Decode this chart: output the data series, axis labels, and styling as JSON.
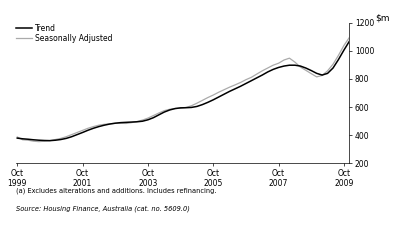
{
  "ylim": [
    200,
    1200
  ],
  "yticks": [
    200,
    400,
    600,
    800,
    1000,
    1200
  ],
  "xlim_start": 1999.708,
  "xlim_end": 2009.917,
  "xtick_positions": [
    1999.75,
    2001.75,
    2003.75,
    2005.75,
    2007.75,
    2009.75
  ],
  "xtick_labels": [
    "Oct\n1999",
    "Oct\n2001",
    "Oct\n2003",
    "Oct\n2005",
    "Oct\n2007",
    "Oct\n2009"
  ],
  "trend_color": "#000000",
  "seasonal_color": "#aaaaaa",
  "legend_labels": [
    "Trend",
    "Seasonally Adjusted"
  ],
  "footnote1": "(a) Excludes alterations and additions. Includes refinancing.",
  "footnote2": "Source: Housing Finance, Australia (cat. no. 5609.0)",
  "background_color": "#ffffff",
  "trend_data": [
    [
      1999.75,
      380
    ],
    [
      1999.917,
      375
    ],
    [
      2000.083,
      372
    ],
    [
      2000.25,
      368
    ],
    [
      2000.417,
      365
    ],
    [
      2000.583,
      363
    ],
    [
      2000.75,
      362
    ],
    [
      2000.917,
      365
    ],
    [
      2001.083,
      370
    ],
    [
      2001.25,
      378
    ],
    [
      2001.417,
      390
    ],
    [
      2001.583,
      405
    ],
    [
      2001.75,
      420
    ],
    [
      2001.917,
      436
    ],
    [
      2002.083,
      450
    ],
    [
      2002.25,
      462
    ],
    [
      2002.417,
      472
    ],
    [
      2002.583,
      480
    ],
    [
      2002.75,
      486
    ],
    [
      2002.917,
      490
    ],
    [
      2003.083,
      492
    ],
    [
      2003.25,
      494
    ],
    [
      2003.417,
      496
    ],
    [
      2003.583,
      500
    ],
    [
      2003.75,
      510
    ],
    [
      2003.917,
      525
    ],
    [
      2004.083,
      545
    ],
    [
      2004.25,
      565
    ],
    [
      2004.417,
      580
    ],
    [
      2004.583,
      590
    ],
    [
      2004.75,
      595
    ],
    [
      2004.917,
      596
    ],
    [
      2005.083,
      598
    ],
    [
      2005.25,
      605
    ],
    [
      2005.417,
      618
    ],
    [
      2005.583,
      634
    ],
    [
      2005.75,
      652
    ],
    [
      2005.917,
      672
    ],
    [
      2006.083,
      692
    ],
    [
      2006.25,
      712
    ],
    [
      2006.417,
      730
    ],
    [
      2006.583,
      748
    ],
    [
      2006.75,
      768
    ],
    [
      2006.917,
      788
    ],
    [
      2007.083,
      808
    ],
    [
      2007.25,
      828
    ],
    [
      2007.417,
      850
    ],
    [
      2007.583,
      868
    ],
    [
      2007.75,
      882
    ],
    [
      2007.917,
      892
    ],
    [
      2008.083,
      898
    ],
    [
      2008.25,
      898
    ],
    [
      2008.417,
      892
    ],
    [
      2008.583,
      878
    ],
    [
      2008.75,
      860
    ],
    [
      2008.917,
      840
    ],
    [
      2009.083,
      828
    ],
    [
      2009.25,
      840
    ],
    [
      2009.417,
      878
    ],
    [
      2009.583,
      938
    ],
    [
      2009.75,
      1005
    ],
    [
      2009.917,
      1068
    ]
  ],
  "seasonal_data": [
    [
      1999.75,
      388
    ],
    [
      1999.917,
      368
    ],
    [
      2000.083,
      365
    ],
    [
      2000.25,
      358
    ],
    [
      2000.417,
      355
    ],
    [
      2000.583,
      358
    ],
    [
      2000.75,
      362
    ],
    [
      2000.917,
      370
    ],
    [
      2001.083,
      378
    ],
    [
      2001.25,
      390
    ],
    [
      2001.417,
      405
    ],
    [
      2001.583,
      420
    ],
    [
      2001.75,
      435
    ],
    [
      2001.917,
      450
    ],
    [
      2002.083,
      462
    ],
    [
      2002.25,
      472
    ],
    [
      2002.417,
      478
    ],
    [
      2002.583,
      482
    ],
    [
      2002.75,
      485
    ],
    [
      2002.917,
      485
    ],
    [
      2003.083,
      484
    ],
    [
      2003.25,
      490
    ],
    [
      2003.417,
      498
    ],
    [
      2003.583,
      508
    ],
    [
      2003.75,
      522
    ],
    [
      2003.917,
      540
    ],
    [
      2004.083,
      558
    ],
    [
      2004.25,
      575
    ],
    [
      2004.417,
      585
    ],
    [
      2004.583,
      590
    ],
    [
      2004.75,
      592
    ],
    [
      2004.917,
      598
    ],
    [
      2005.083,
      610
    ],
    [
      2005.25,
      628
    ],
    [
      2005.417,
      648
    ],
    [
      2005.583,
      668
    ],
    [
      2005.75,
      686
    ],
    [
      2005.917,
      706
    ],
    [
      2006.083,
      724
    ],
    [
      2006.25,
      742
    ],
    [
      2006.417,
      758
    ],
    [
      2006.583,
      775
    ],
    [
      2006.75,
      795
    ],
    [
      2006.917,
      812
    ],
    [
      2007.083,
      835
    ],
    [
      2007.25,
      858
    ],
    [
      2007.417,
      878
    ],
    [
      2007.583,
      898
    ],
    [
      2007.75,
      912
    ],
    [
      2007.917,
      935
    ],
    [
      2008.083,
      948
    ],
    [
      2008.25,
      920
    ],
    [
      2008.417,
      885
    ],
    [
      2008.583,
      862
    ],
    [
      2008.75,
      838
    ],
    [
      2008.917,
      815
    ],
    [
      2009.083,
      825
    ],
    [
      2009.25,
      858
    ],
    [
      2009.417,
      905
    ],
    [
      2009.583,
      968
    ],
    [
      2009.75,
      1038
    ],
    [
      2009.917,
      1095
    ]
  ]
}
